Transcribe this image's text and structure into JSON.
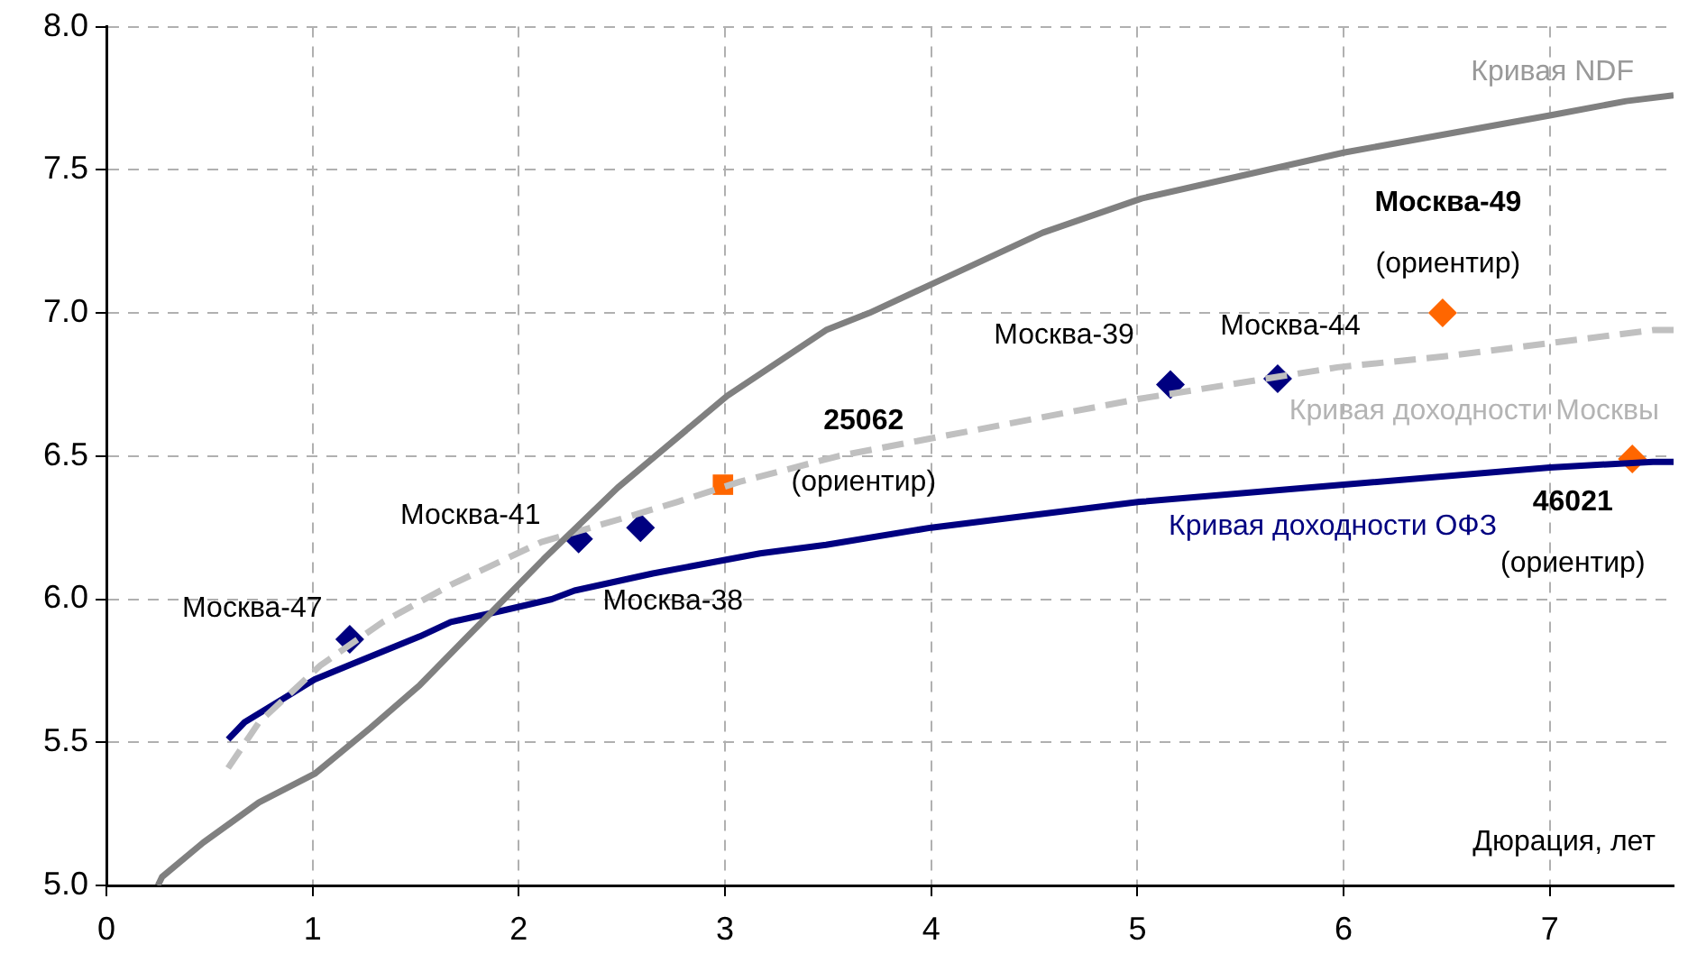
{
  "chart_data": {
    "type": "line",
    "xlabel": "Дюрация, лет",
    "xlim": [
      0,
      7.6
    ],
    "xticks": [
      0,
      1,
      2,
      3,
      4,
      5,
      6,
      7
    ],
    "ylim": [
      5,
      8
    ],
    "yticks": [
      {
        "value": 5,
        "label": "5.0"
      },
      {
        "value": 5.5,
        "label": "5.5"
      },
      {
        "value": 6,
        "label": "6.0"
      },
      {
        "value": 6.5,
        "label": "6.5"
      },
      {
        "value": 7,
        "label": "7.0"
      },
      {
        "value": 7.5,
        "label": "7.5"
      },
      {
        "value": 8,
        "label": "8.0"
      }
    ],
    "grid": true,
    "legend": false,
    "series": [
      {
        "name": "Кривая NDF",
        "color": "#808080",
        "line_style": "solid",
        "marker": "none",
        "x": [
          0.25,
          0.27,
          0.47,
          0.74,
          1.01,
          1.28,
          1.52,
          1.82,
          2.12,
          2.48,
          3.01,
          3.49,
          3.7,
          4.0,
          4.54,
          5.02,
          6.0,
          7.0,
          7.37,
          7.6
        ],
        "values": [
          5.0,
          5.03,
          5.15,
          5.29,
          5.39,
          5.55,
          5.7,
          5.92,
          6.14,
          6.39,
          6.71,
          6.94,
          7.0,
          7.1,
          7.28,
          7.4,
          7.56,
          7.69,
          7.74,
          7.76
        ]
      },
      {
        "name": "Кривая доходности Москвы",
        "color": "#c0c0c0",
        "line_style": "dashed",
        "marker": "none",
        "x": [
          0.59,
          0.74,
          1.04,
          1.34,
          1.67,
          2.11,
          2.54,
          2.77,
          3.07,
          3.55,
          4.06,
          5.01,
          5.97,
          6.51,
          7.5,
          7.6
        ],
        "values": [
          5.41,
          5.57,
          5.77,
          5.92,
          6.05,
          6.2,
          6.29,
          6.34,
          6.41,
          6.5,
          6.57,
          6.7,
          6.81,
          6.85,
          6.94,
          6.94
        ]
      },
      {
        "name": "Кривая доходности ОФЗ",
        "color": "#000080",
        "line_style": "solid",
        "marker": "none",
        "x": [
          0.59,
          0.67,
          0.83,
          1.01,
          1.18,
          1.52,
          1.67,
          1.92,
          2.16,
          2.27,
          2.65,
          3.17,
          3.49,
          4.0,
          5.01,
          6.0,
          7.0,
          7.5,
          7.6
        ],
        "values": [
          5.51,
          5.57,
          5.64,
          5.72,
          5.77,
          5.87,
          5.92,
          5.96,
          6.0,
          6.03,
          6.09,
          6.16,
          6.19,
          6.25,
          6.34,
          6.4,
          6.46,
          6.48,
          6.48
        ]
      },
      {
        "type": "scatter",
        "color": "#000080",
        "marker": "diamond",
        "x": [
          1.18,
          2.29,
          2.59,
          5.16,
          5.68
        ],
        "values": [
          5.86,
          6.21,
          6.25,
          6.75,
          6.77
        ]
      },
      {
        "type": "scatter",
        "color": "#ff6600",
        "marker": "square",
        "x": [
          2.99
        ],
        "values": [
          6.4
        ]
      },
      {
        "type": "scatter",
        "color": "#ff6600",
        "marker": "diamond",
        "x": [
          6.48,
          7.4
        ],
        "values": [
          7.0,
          6.49
        ]
      }
    ],
    "annotations": [
      {
        "text": "Москва-47",
        "x": 1.18,
        "y": 5.86
      },
      {
        "text": "Москва-41",
        "x": 2.29,
        "y": 6.21
      },
      {
        "text": "Москва-38",
        "x": 2.59,
        "y": 6.25
      },
      {
        "text": "25062\n(ориентир)",
        "x": 2.99,
        "y": 6.4
      },
      {
        "text": "Москва-39",
        "x": 5.16,
        "y": 6.75
      },
      {
        "text": "Москва-44",
        "x": 5.68,
        "y": 6.77
      },
      {
        "text": "Москва-49\n(ориентир)",
        "x": 6.48,
        "y": 7.0
      },
      {
        "text": "46021\n(ориентир)",
        "x": 7.4,
        "y": 6.49
      }
    ]
  }
}
